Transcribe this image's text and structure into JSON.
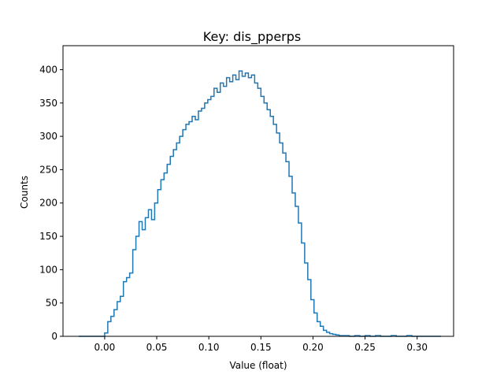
{
  "chart_data": {
    "type": "histogram",
    "title": "Key: dis_pperps",
    "xlabel": "Value (float)",
    "ylabel": "Counts",
    "xlim": [
      -0.04,
      0.335
    ],
    "ylim": [
      0,
      436
    ],
    "x_ticks": [
      0.0,
      0.05,
      0.1,
      0.15,
      0.2,
      0.25,
      0.3
    ],
    "x_tick_labels": [
      "0.00",
      "0.05",
      "0.10",
      "0.15",
      "0.20",
      "0.25",
      "0.30"
    ],
    "y_ticks": [
      0,
      50,
      100,
      150,
      200,
      250,
      300,
      350,
      400
    ],
    "y_tick_labels": [
      "0",
      "50",
      "100",
      "150",
      "200",
      "250",
      "300",
      "350",
      "400"
    ],
    "grid": false,
    "series": [
      {
        "color": "#1f77b4",
        "bins": [
          [
            -0.025,
            0
          ],
          [
            -0.02,
            0
          ],
          [
            -0.015,
            0
          ],
          [
            -0.01,
            0
          ],
          [
            -0.005,
            0
          ],
          [
            0.0,
            5
          ],
          [
            0.003,
            22
          ],
          [
            0.006,
            30
          ],
          [
            0.009,
            40
          ],
          [
            0.012,
            52
          ],
          [
            0.015,
            60
          ],
          [
            0.018,
            82
          ],
          [
            0.021,
            88
          ],
          [
            0.024,
            95
          ],
          [
            0.027,
            130
          ],
          [
            0.03,
            150
          ],
          [
            0.033,
            172
          ],
          [
            0.036,
            160
          ],
          [
            0.039,
            178
          ],
          [
            0.042,
            190
          ],
          [
            0.045,
            175
          ],
          [
            0.048,
            200
          ],
          [
            0.051,
            220
          ],
          [
            0.054,
            235
          ],
          [
            0.057,
            245
          ],
          [
            0.06,
            258
          ],
          [
            0.063,
            270
          ],
          [
            0.066,
            280
          ],
          [
            0.069,
            290
          ],
          [
            0.072,
            300
          ],
          [
            0.075,
            310
          ],
          [
            0.078,
            318
          ],
          [
            0.081,
            322
          ],
          [
            0.084,
            330
          ],
          [
            0.087,
            325
          ],
          [
            0.09,
            338
          ],
          [
            0.093,
            342
          ],
          [
            0.096,
            350
          ],
          [
            0.099,
            355
          ],
          [
            0.102,
            360
          ],
          [
            0.105,
            372
          ],
          [
            0.108,
            366
          ],
          [
            0.111,
            380
          ],
          [
            0.114,
            375
          ],
          [
            0.117,
            388
          ],
          [
            0.12,
            382
          ],
          [
            0.123,
            392
          ],
          [
            0.126,
            385
          ],
          [
            0.129,
            398
          ],
          [
            0.132,
            390
          ],
          [
            0.135,
            395
          ],
          [
            0.138,
            388
          ],
          [
            0.141,
            392
          ],
          [
            0.144,
            380
          ],
          [
            0.147,
            372
          ],
          [
            0.15,
            360
          ],
          [
            0.153,
            350
          ],
          [
            0.156,
            340
          ],
          [
            0.159,
            330
          ],
          [
            0.162,
            318
          ],
          [
            0.165,
            305
          ],
          [
            0.168,
            290
          ],
          [
            0.171,
            275
          ],
          [
            0.174,
            262
          ],
          [
            0.177,
            240
          ],
          [
            0.18,
            215
          ],
          [
            0.183,
            195
          ],
          [
            0.186,
            170
          ],
          [
            0.189,
            140
          ],
          [
            0.192,
            110
          ],
          [
            0.195,
            85
          ],
          [
            0.198,
            55
          ],
          [
            0.201,
            35
          ],
          [
            0.204,
            22
          ],
          [
            0.207,
            15
          ],
          [
            0.21,
            9
          ],
          [
            0.213,
            6
          ],
          [
            0.216,
            4
          ],
          [
            0.219,
            3
          ],
          [
            0.222,
            2
          ],
          [
            0.225,
            1
          ],
          [
            0.23,
            1
          ],
          [
            0.235,
            0
          ],
          [
            0.24,
            1
          ],
          [
            0.245,
            0
          ],
          [
            0.25,
            1
          ],
          [
            0.255,
            0
          ],
          [
            0.26,
            1
          ],
          [
            0.265,
            0
          ],
          [
            0.27,
            0
          ],
          [
            0.275,
            1
          ],
          [
            0.28,
            0
          ],
          [
            0.285,
            0
          ],
          [
            0.29,
            1
          ],
          [
            0.295,
            0
          ],
          [
            0.3,
            0
          ],
          [
            0.305,
            0
          ],
          [
            0.31,
            0
          ],
          [
            0.315,
            0
          ],
          [
            0.32,
            0
          ]
        ]
      }
    ]
  }
}
